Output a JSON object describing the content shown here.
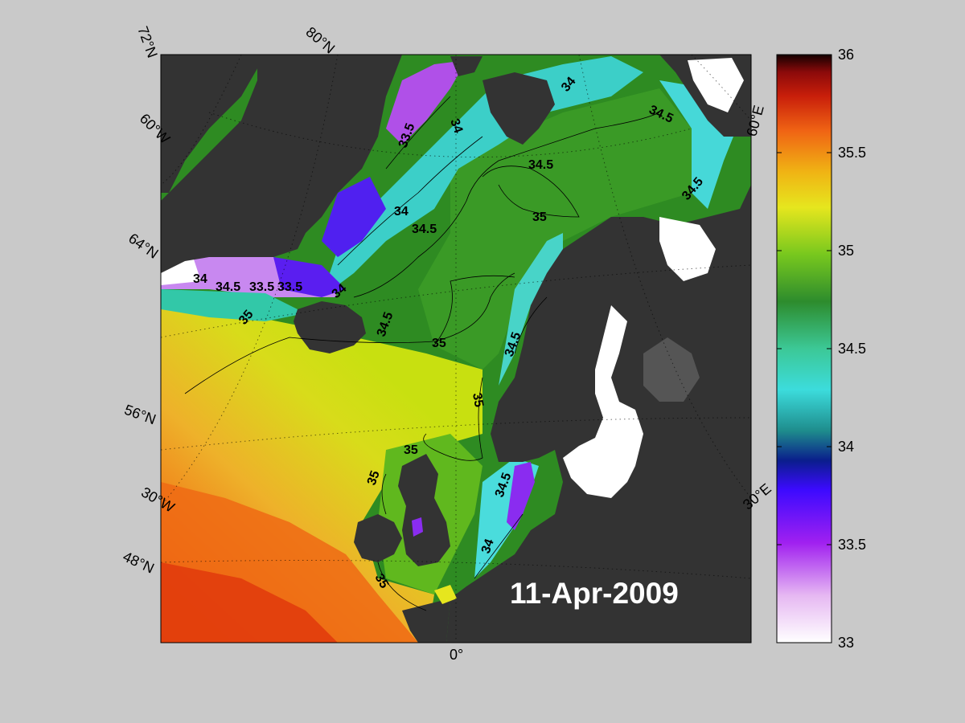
{
  "map": {
    "date": "11-Apr-2009",
    "graticule_labels": {
      "lat_72": "72°N",
      "lat_80": "80°N",
      "lat_60_top": "60°W",
      "lat_64": "64°N",
      "lat_56": "56°N",
      "lon_30w": "30°W",
      "lat_48": "48°N",
      "lon_0": "0°",
      "lon_30e": "30°E",
      "lon_60e": "60°E"
    },
    "contour_labels": [
      "34",
      "33.5",
      "34",
      "34.5",
      "34",
      "34.5",
      "35",
      "34",
      "34.5",
      "35",
      "34.5",
      "34.5",
      "33.5",
      "35",
      "34.5",
      "35",
      "34.5",
      "35",
      "35",
      "35",
      "34.5",
      "34",
      "35",
      "34",
      "34"
    ]
  },
  "colorbar": {
    "ticks": [
      "36",
      "35.5",
      "35",
      "34.5",
      "34",
      "33.5",
      "33"
    ],
    "range": [
      33,
      36
    ],
    "colors": [
      "#ffffff",
      "#e6b8f2",
      "#a020f0",
      "#3c0aff",
      "#0a1e8c",
      "#1e8c8c",
      "#3cdcdc",
      "#3cc896",
      "#2d8c2d",
      "#78c81e",
      "#e6e61e",
      "#f0b414",
      "#f06414",
      "#c81e0a",
      "#8c0a0a",
      "#140000"
    ]
  }
}
